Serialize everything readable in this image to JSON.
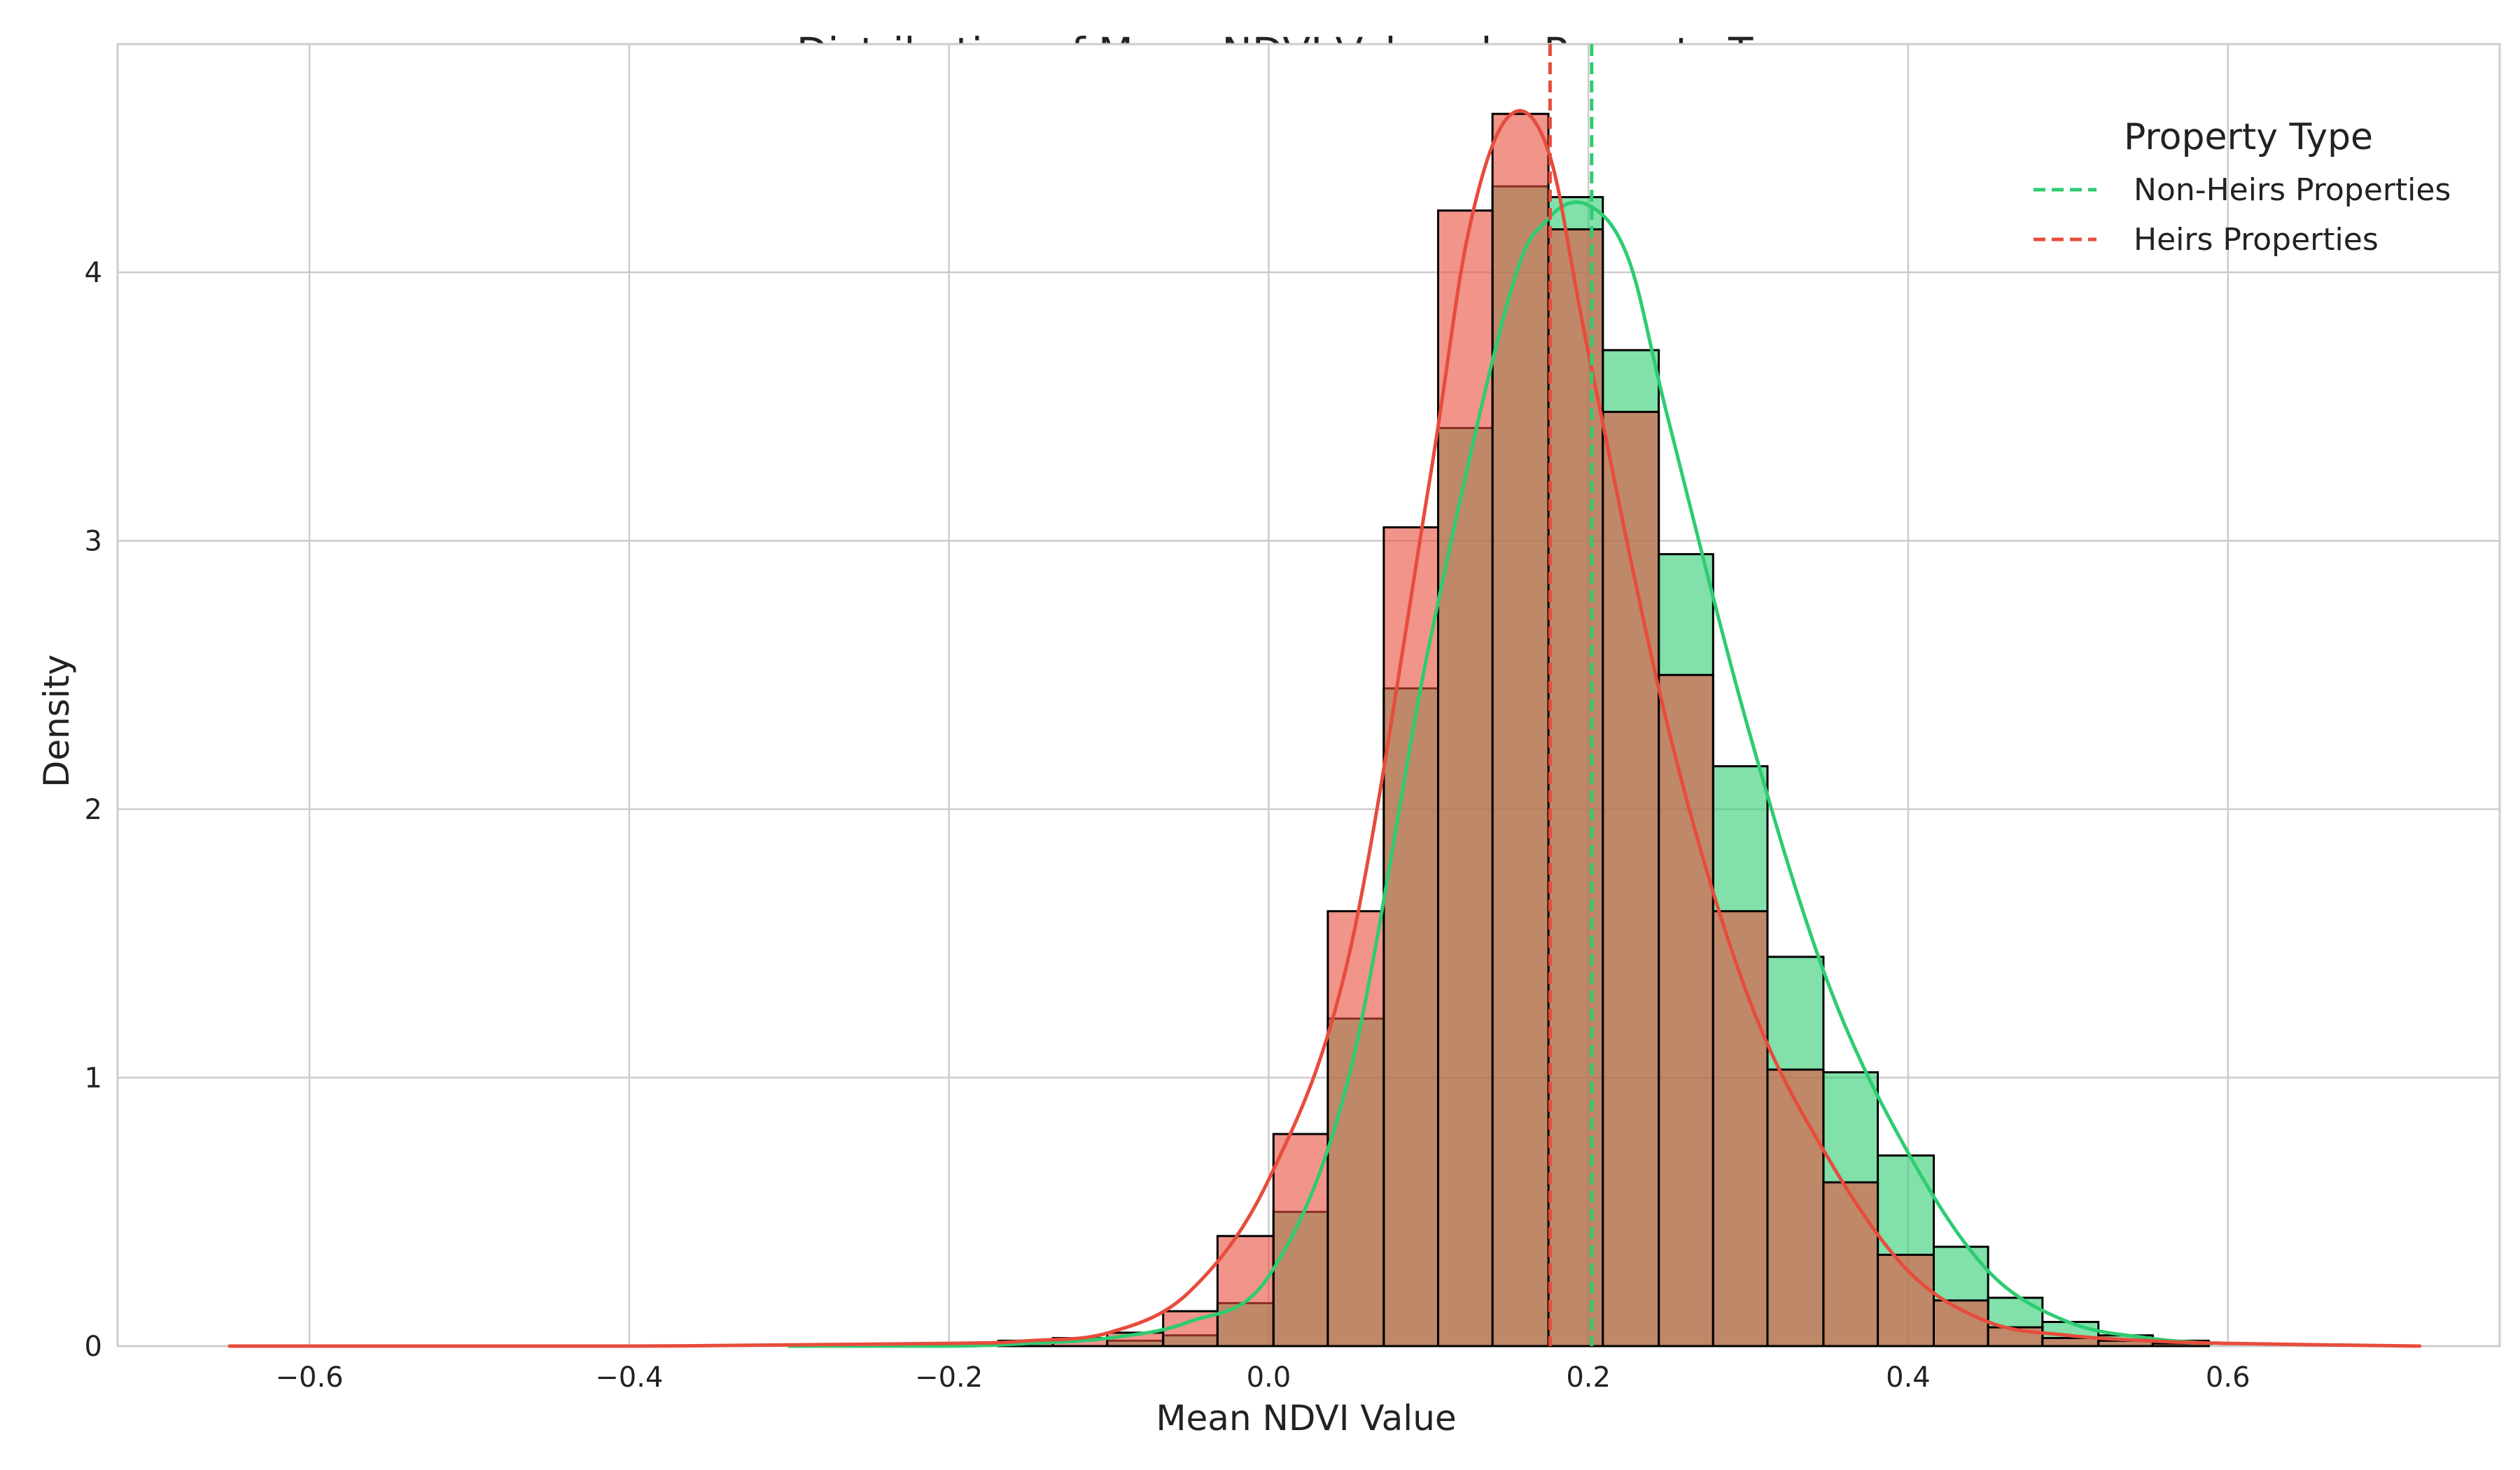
{
  "chart_data": {
    "type": "histogram",
    "title": "Distribution of Mean NDVI Values by Property Type",
    "xlabel": "Mean NDVI Value",
    "ylabel": "Density",
    "xlim": [
      -0.72,
      0.77
    ],
    "ylim": [
      0,
      4.85
    ],
    "xticks": [
      -0.6,
      -0.4,
      -0.2,
      0.0,
      0.2,
      0.4,
      0.6
    ],
    "xtick_labels": [
      "−0.6",
      "−0.4",
      "−0.2",
      "0.0",
      "0.2",
      "0.4",
      "0.6"
    ],
    "yticks": [
      0,
      1,
      2,
      3,
      4
    ],
    "ytick_labels": [
      "0",
      "1",
      "2",
      "3",
      "4"
    ],
    "grid": true,
    "legend": {
      "title": "Property Type",
      "position": "top-right",
      "entries": [
        "Non-Heirs Properties",
        "Heirs Properties"
      ]
    },
    "bin_edges": [
      -0.169,
      -0.135,
      -0.101,
      -0.066,
      -0.032,
      0.003,
      0.037,
      0.072,
      0.106,
      0.14,
      0.175,
      0.209,
      0.244,
      0.278,
      0.312,
      0.347,
      0.381,
      0.416,
      0.45,
      0.484,
      0.519,
      0.553,
      0.588
    ],
    "series": [
      {
        "name": "Non-Heirs Properties",
        "color": "#2ecc71",
        "mean": 0.202,
        "density": [
          0.0,
          0.0,
          0.02,
          0.04,
          0.16,
          0.5,
          1.22,
          2.45,
          3.42,
          4.32,
          4.28,
          3.71,
          2.95,
          2.16,
          1.45,
          1.02,
          0.71,
          0.37,
          0.18,
          0.09,
          0.04,
          0.02
        ],
        "kde": {
          "x": [
            -0.3,
            -0.2,
            -0.15,
            -0.1,
            -0.05,
            0.0,
            0.05,
            0.1,
            0.15,
            0.175,
            0.2,
            0.225,
            0.25,
            0.3,
            0.35,
            0.4,
            0.45,
            0.5,
            0.55,
            0.59
          ],
          "y": [
            0.0,
            0.0,
            0.01,
            0.03,
            0.09,
            0.26,
            1.0,
            2.6,
            3.9,
            4.2,
            4.25,
            4.05,
            3.45,
            2.3,
            1.35,
            0.72,
            0.28,
            0.09,
            0.03,
            0.01
          ]
        }
      },
      {
        "name": "Heirs Properties",
        "color": "#e74c3c",
        "mean": 0.176,
        "density": [
          0.02,
          0.03,
          0.05,
          0.13,
          0.41,
          0.79,
          1.62,
          3.05,
          4.23,
          4.59,
          4.16,
          3.48,
          2.5,
          1.62,
          1.03,
          0.61,
          0.34,
          0.17,
          0.07,
          0.03,
          0.02,
          0.01
        ],
        "kde": {
          "x": [
            -0.65,
            -0.4,
            -0.2,
            -0.15,
            -0.1,
            -0.05,
            0.0,
            0.05,
            0.1,
            0.125,
            0.15,
            0.175,
            0.2,
            0.25,
            0.3,
            0.35,
            0.4,
            0.45,
            0.5,
            0.55,
            0.6,
            0.72
          ],
          "y": [
            0.0,
            0.0,
            0.01,
            0.02,
            0.05,
            0.2,
            0.62,
            1.45,
            3.2,
            4.15,
            4.58,
            4.45,
            3.7,
            2.3,
            1.3,
            0.7,
            0.28,
            0.09,
            0.04,
            0.02,
            0.01,
            0.0
          ]
        }
      }
    ]
  }
}
